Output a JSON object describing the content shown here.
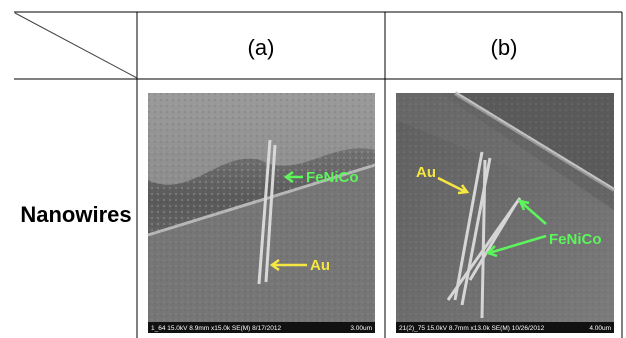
{
  "table": {
    "header": [
      "(a)",
      "(b)"
    ],
    "rows": [
      {
        "label": "Nanowires",
        "images": [
          {
            "annotations": [
              "FeNiCo",
              "Au"
            ],
            "info": "1_64 15.0kV 8.9mm x15.0k SE(M) 8/17/2012",
            "scale": "3.00um"
          },
          {
            "annotations": [
              "Au",
              "FeNiCo"
            ],
            "info": "21(2)_75 15.0kV 8.7mm x13.0k SE(M) 10/26/2012",
            "scale": "4.00um"
          }
        ]
      }
    ]
  }
}
